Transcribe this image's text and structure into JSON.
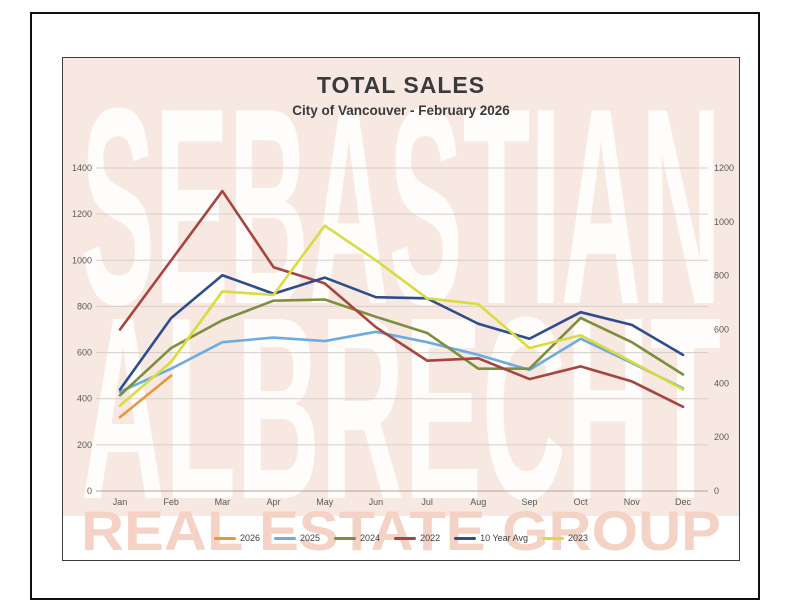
{
  "page": {
    "title": "TOTAL SALES",
    "subtitle": "City of Vancouver - February 2026"
  },
  "watermark": {
    "line1": "SEBASTIAN",
    "line2": "ALBRECHT",
    "line3": "REAL ESTATE GROUP",
    "panel_color": "#f7e8e2",
    "letters_color": "rgba(255,255,255,0.88)",
    "bottom_letters_color": "#f4d2c6"
  },
  "chart_data": {
    "type": "line",
    "title": "TOTAL SALES",
    "subtitle": "City of Vancouver - February 2026",
    "categories": [
      "Jan",
      "Feb",
      "Mar",
      "Apr",
      "May",
      "Jun",
      "Jul",
      "Aug",
      "Sep",
      "Oct",
      "Nov",
      "Dec"
    ],
    "series": [
      {
        "name": "2026",
        "color": "#E8963F",
        "values": [
          320,
          500,
          null,
          null,
          null,
          null,
          null,
          null,
          null,
          null,
          null,
          null
        ]
      },
      {
        "name": "2025",
        "color": "#6CACE0",
        "values": [
          430,
          530,
          645,
          665,
          650,
          690,
          645,
          590,
          525,
          660,
          555,
          445
        ]
      },
      {
        "name": "2024",
        "color": "#7D8F3E",
        "values": [
          415,
          620,
          740,
          825,
          830,
          755,
          685,
          530,
          530,
          750,
          645,
          505
        ]
      },
      {
        "name": "2022",
        "color": "#A6453F",
        "values": [
          700,
          1000,
          1300,
          970,
          900,
          710,
          565,
          575,
          485,
          540,
          475,
          365
        ]
      },
      {
        "name": "10 Year Avg",
        "color": "#2E4D8C",
        "values": [
          440,
          750,
          935,
          855,
          925,
          840,
          835,
          725,
          660,
          775,
          720,
          590
        ]
      },
      {
        "name": "2023",
        "color": "#D9DC3F",
        "values": [
          370,
          560,
          865,
          850,
          1150,
          1000,
          835,
          810,
          620,
          675,
          560,
          440
        ]
      }
    ],
    "axes": {
      "left": {
        "min": 0,
        "max": 1400,
        "step": 200
      },
      "right": {
        "min": 0,
        "max": 1200,
        "step": 200
      }
    },
    "grid": "horizontal gridlines only",
    "legend_position": "bottom",
    "legend_order": [
      "2026",
      "2025",
      "2024",
      "2022",
      "10 Year Avg",
      "2023"
    ],
    "tick_label_color": "#595959",
    "gridline_color": "#d8cdc7",
    "baseline_color": "#b0a49e"
  }
}
